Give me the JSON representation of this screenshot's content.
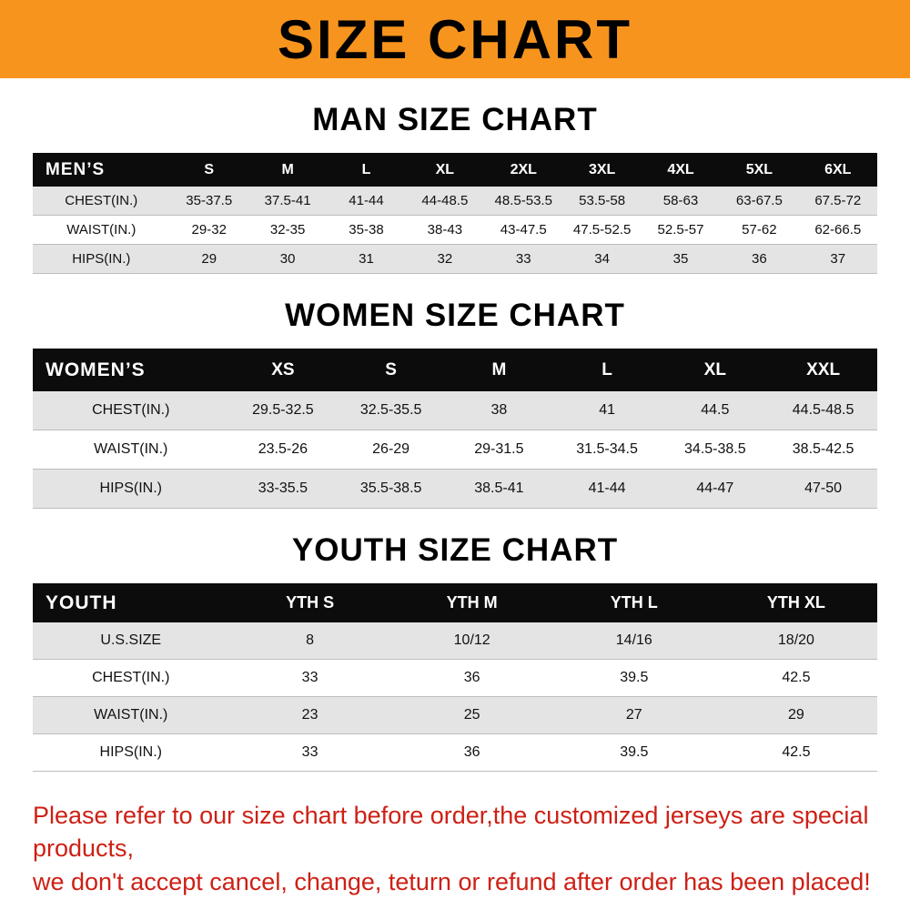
{
  "banner": {
    "title": "SIZE CHART",
    "bg_color": "#f7941d",
    "text_color": "#000000"
  },
  "colors": {
    "table_header_bg": "#0c0c0c",
    "table_header_text": "#ffffff",
    "row_stripe": "#e4e4e4",
    "footer_text": "#cd2015"
  },
  "chart_data": [
    {
      "type": "table",
      "title": "MAN SIZE CHART",
      "columns": [
        "MEN’S",
        "S",
        "M",
        "L",
        "XL",
        "2XL",
        "3XL",
        "4XL",
        "5XL",
        "6XL"
      ],
      "rows": [
        [
          "CHEST(IN.)",
          "35-37.5",
          "37.5-41",
          "41-44",
          "44-48.5",
          "48.5-53.5",
          "53.5-58",
          "58-63",
          "63-67.5",
          "67.5-72"
        ],
        [
          "WAIST(IN.)",
          "29-32",
          "32-35",
          "35-38",
          "38-43",
          "43-47.5",
          "47.5-52.5",
          "52.5-57",
          "57-62",
          "62-66.5"
        ],
        [
          "HIPS(IN.)",
          "29",
          "30",
          "31",
          "32",
          "33",
          "34",
          "35",
          "36",
          "37"
        ]
      ]
    },
    {
      "type": "table",
      "title": "WOMEN SIZE CHART",
      "columns": [
        "WOMEN’S",
        "XS",
        "S",
        "M",
        "L",
        "XL",
        "XXL"
      ],
      "rows": [
        [
          "CHEST(IN.)",
          "29.5-32.5",
          "32.5-35.5",
          "38",
          "41",
          "44.5",
          "44.5-48.5"
        ],
        [
          "WAIST(IN.)",
          "23.5-26",
          "26-29",
          "29-31.5",
          "31.5-34.5",
          "34.5-38.5",
          "38.5-42.5"
        ],
        [
          "HIPS(IN.)",
          "33-35.5",
          "35.5-38.5",
          "38.5-41",
          "41-44",
          "44-47",
          "47-50"
        ]
      ]
    },
    {
      "type": "table",
      "title": "YOUTH SIZE CHART",
      "columns": [
        "YOUTH",
        "YTH S",
        "YTH M",
        "YTH L",
        "YTH XL"
      ],
      "rows": [
        [
          "U.S.SIZE",
          "8",
          "10/12",
          "14/16",
          "18/20"
        ],
        [
          "CHEST(IN.)",
          "33",
          "36",
          "39.5",
          "42.5"
        ],
        [
          "WAIST(IN.)",
          "23",
          "25",
          "27",
          "29"
        ],
        [
          "HIPS(IN.)",
          "33",
          "36",
          "39.5",
          "42.5"
        ]
      ]
    }
  ],
  "footer": {
    "lines": [
      "Please refer to our size chart before order,the customized jerseys are special products,",
      "we don't accept cancel, change, teturn or refund after order has been placed!"
    ]
  }
}
